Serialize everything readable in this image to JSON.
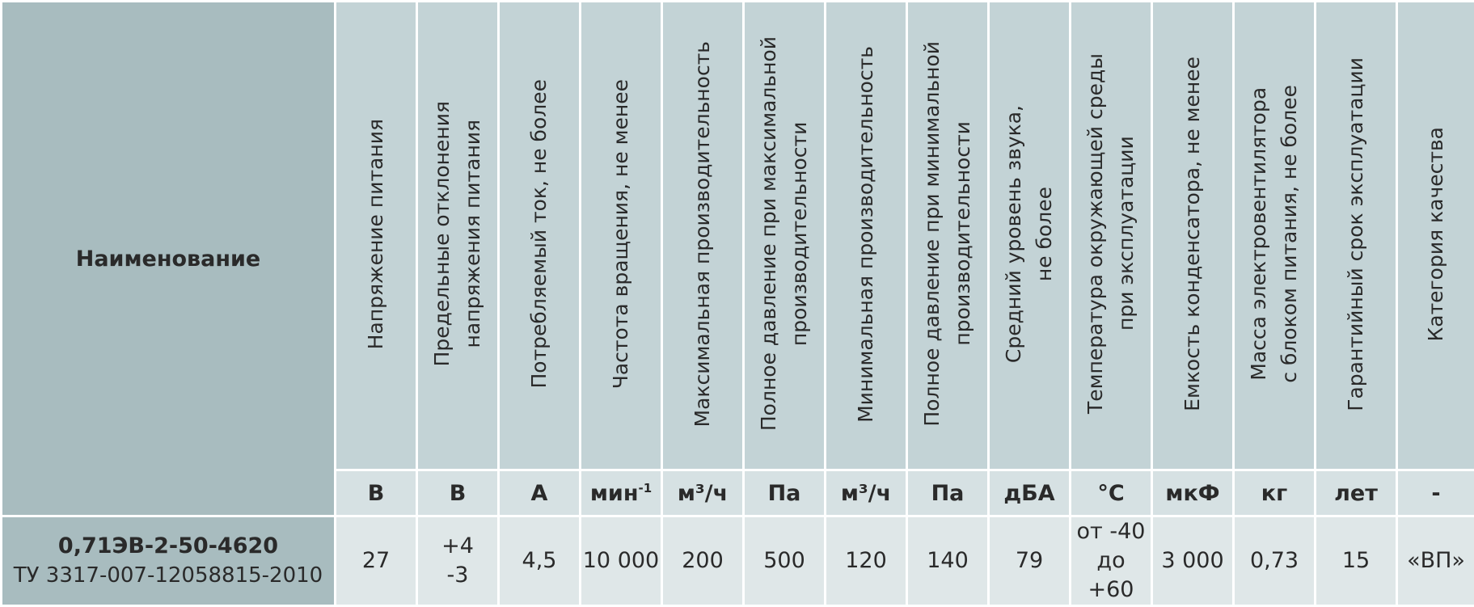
{
  "name_header": "Наименование",
  "params": [
    {
      "label": "Напряжение  питания",
      "unit": "В",
      "value": "27"
    },
    {
      "label": "Предельные отклонения\nнапряжения питания",
      "unit": "В",
      "value": "+4\n-3"
    },
    {
      "label": "Потребляемый ток, не более",
      "unit": "А",
      "value": "4,5"
    },
    {
      "label": "Частота вращения, не менее",
      "unit_base": "мин",
      "unit_sup": "-1",
      "value": "10 000"
    },
    {
      "label": "Максимальная производительность",
      "unit": "м³/ч",
      "value": "200"
    },
    {
      "label": "Полное давление при максимальной\nпроизводительности",
      "unit": "Па",
      "value": "500"
    },
    {
      "label": "Минимальная производительность",
      "unit": "м³/ч",
      "value": "120"
    },
    {
      "label": "Полное давление при минимальной\nпроизводительности",
      "unit": "Па",
      "value": "140"
    },
    {
      "label": "Средний уровень звука,\nне более",
      "unit": "дБА",
      "value": "79"
    },
    {
      "label": "Температура окружающей среды\nпри эксплуатации",
      "unit": "°С",
      "value": "от -40\nдо +60"
    },
    {
      "label": "Емкость конденсатора, не менее",
      "unit": "мкФ",
      "value": "3 000"
    },
    {
      "label": "Масса электровентилятора\nс блоком питания, не более",
      "unit": "кг",
      "value": "0,73"
    },
    {
      "label": "Гарантийный срок эксплуатации",
      "unit": "лет",
      "value": "15"
    },
    {
      "label": "Категория качества",
      "unit": "-",
      "value": "«ВП»"
    }
  ],
  "product": {
    "model": "0,71ЭВ-2-50-4620",
    "spec": "ТУ 3317-007-12058815-2010"
  }
}
